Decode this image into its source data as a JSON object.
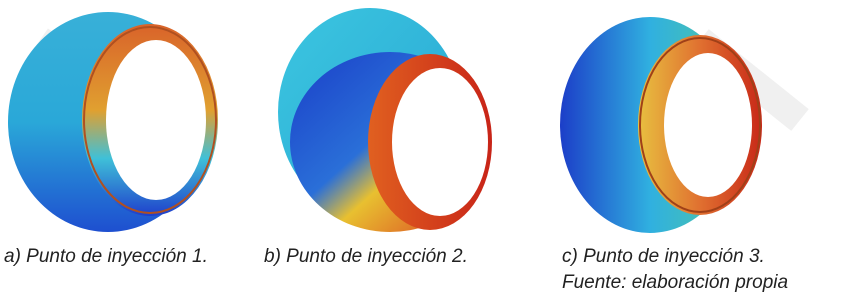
{
  "figures": [
    {
      "caption": "a) Punto de inyección 1."
    },
    {
      "caption": "b) Punto de inyección 2."
    },
    {
      "caption": "c) Punto de inyección 3."
    }
  ],
  "source": "Fuente: elaboración propia"
}
